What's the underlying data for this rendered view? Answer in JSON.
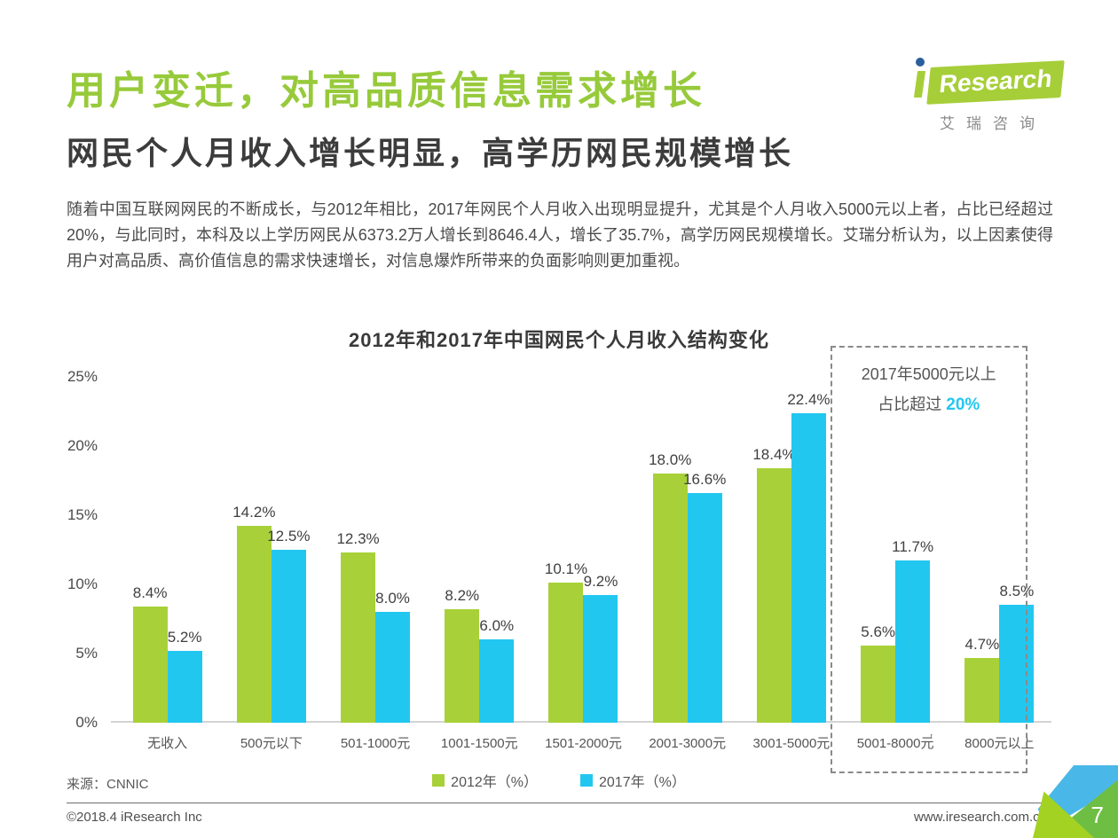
{
  "page": {
    "title": "用户变迁，对高品质信息需求增长",
    "subtitle": "网民个人月收入增长明显，高学历网民规模增长",
    "paragraph": "随着中国互联网网民的不断成长，与2012年相比，2017年网民个人月收入出现明显提升，尤其是个人月收入5000元以上者，占比已经超过20%，与此同时，本科及以上学历网民从6373.2万人增长到8646.4人，增长了35.7%，高学历网民规模增长。艾瑞分析认为，以上因素使得用户对高品质、高价值信息的需求快速增长，对信息爆炸所带来的负面影响则更加重视。"
  },
  "logo": {
    "wordmark": "Research",
    "chinese": "艾瑞咨询"
  },
  "chart_data": {
    "type": "bar",
    "title": "2012年和2017年中国网民个人月收入结构变化",
    "categories": [
      "无收入",
      "500元以下",
      "501-1000元",
      "1001-1500元",
      "1501-2000元",
      "2001-3000元",
      "3001-5000元",
      "5001-8000元",
      "8000元以上"
    ],
    "series": [
      {
        "name": "2012年（%）",
        "color": "#a8d139",
        "values": [
          8.4,
          14.2,
          12.3,
          8.2,
          10.1,
          18.0,
          18.4,
          5.6,
          4.7
        ]
      },
      {
        "name": "2017年（%）",
        "color": "#22c7f0",
        "values": [
          5.2,
          12.5,
          8.0,
          6.0,
          9.2,
          16.6,
          22.4,
          11.7,
          8.5
        ]
      }
    ],
    "ylim": [
      0,
      25
    ],
    "ytick_labels": [
      "25%",
      "20%",
      "15%",
      "10%",
      "5%",
      "0%"
    ],
    "value_suffix": "%",
    "grid": false,
    "legend_position": "bottom-center",
    "highlight_box": {
      "covers_categories": [
        "5001-8000元",
        "8000元以上"
      ],
      "note_line1": "2017年5000元以上",
      "note_line2_prefix": "占比超过 ",
      "note_line2_value": "20%",
      "value_color": "#22c7f0"
    },
    "x_axis_artifact": "’"
  },
  "source_note": "来源：CNNIC",
  "footer": {
    "copyright": "©2018.4 iResearch Inc",
    "website": "www.iresearch.com.cn",
    "page_number": "7"
  },
  "colors": {
    "title_green": "#97ca3b",
    "bar_2012": "#a8d139",
    "bar_2017": "#22c7f0",
    "logo_green": "#a6ce39"
  }
}
